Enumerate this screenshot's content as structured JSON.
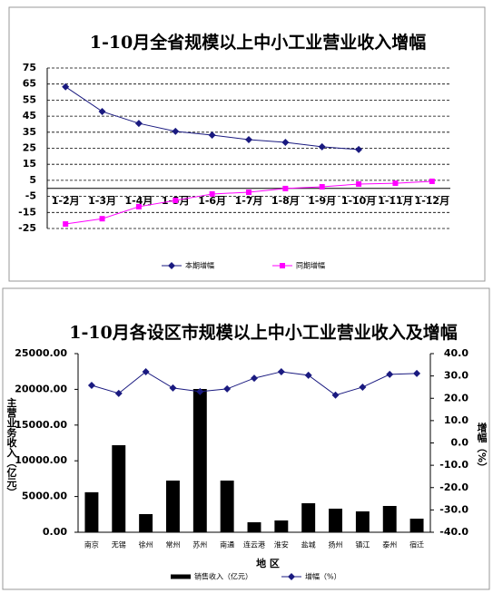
{
  "chart_data": [
    {
      "type": "line",
      "title": "1-10月全省规模以上中小工业营业收入增幅",
      "categories": [
        "1-2月",
        "1-3月",
        "1-4月",
        "1-5月",
        "1-6月",
        "1-7月",
        "1-8月",
        "1-9月",
        "1-10月",
        "1-11月",
        "1-12月"
      ],
      "series": [
        {
          "name": "本期增幅",
          "color": "#1a1a80",
          "marker": "diamond",
          "values": [
            63.3,
            47.9,
            40.5,
            35.5,
            33.2,
            30.4,
            28.7,
            25.9,
            24.2,
            null,
            null
          ]
        },
        {
          "name": "同期增幅",
          "color": "#ff00ff",
          "marker": "square",
          "values": [
            -22.2,
            -18.9,
            -11.4,
            -7.5,
            -3.5,
            -2.4,
            -0.1,
            1.0,
            2.7,
            3.2,
            4.4
          ]
        }
      ],
      "ylim": [
        -25,
        75
      ],
      "yticks": [
        -25,
        -15,
        -5,
        5,
        15,
        25,
        35,
        45,
        55,
        65,
        75
      ],
      "grid": true
    },
    {
      "type": "bar",
      "title": "1-10月各设区市规模以上中小工业营业收入及增幅",
      "categories": [
        "南京",
        "无锡",
        "徐州",
        "常州",
        "苏州",
        "南通",
        "连云港",
        "淮安",
        "盐城",
        "扬州",
        "镇江",
        "泰州",
        "宿迁"
      ],
      "series": [
        {
          "name": "销售收入（亿元）",
          "color": "#000000",
          "values": [
            5600,
            12180,
            2540,
            7230,
            20050,
            7230,
            1400,
            1650,
            4060,
            3300,
            2920,
            3680,
            1900
          ]
        },
        {
          "name": "增幅（%）",
          "color": "#1a1a80",
          "type": "line",
          "marker": "diamond",
          "axis": "y2",
          "values": [
            25.8,
            22.2,
            31.9,
            24.6,
            23.0,
            24.2,
            29.0,
            31.9,
            30.3,
            21.4,
            25.0,
            30.7,
            31.1
          ]
        }
      ],
      "x_label": "地 区",
      "y_label": "主营业务收入（亿元）",
      "y2_label": "增幅（%）",
      "ylim": [
        0,
        25000
      ],
      "yticks": [
        {
          "value": 0,
          "label": "0.00"
        },
        {
          "value": 5000,
          "label": "5000.00"
        },
        {
          "value": 10000,
          "label": "10000.00"
        },
        {
          "value": 15000,
          "label": "15000.00"
        },
        {
          "value": 20000,
          "label": "20000.00"
        },
        {
          "value": 25000,
          "label": "25000.00"
        }
      ],
      "y2lim": [
        -40,
        40
      ],
      "y2ticks": [
        {
          "value": -40,
          "label": "-40.0"
        },
        {
          "value": -30,
          "label": "-30.0"
        },
        {
          "value": -20,
          "label": "-20.0"
        },
        {
          "value": -10,
          "label": "-10.0"
        },
        {
          "value": 0,
          "label": "0.0"
        },
        {
          "value": 10,
          "label": "10.0"
        },
        {
          "value": 20,
          "label": "20.0"
        },
        {
          "value": 30,
          "label": "30.0"
        },
        {
          "value": 40,
          "label": "40.0"
        }
      ],
      "grid": false
    }
  ]
}
